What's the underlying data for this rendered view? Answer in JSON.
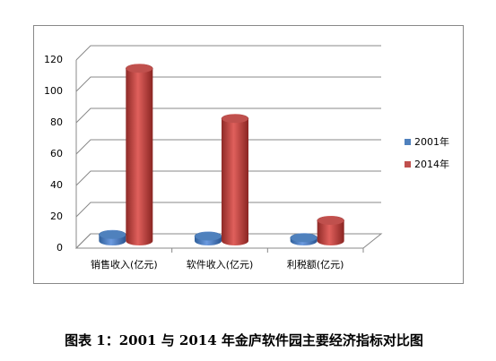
{
  "chart_data": {
    "type": "bar",
    "categories": [
      "销售收入(亿元)",
      "软件收入(亿元)",
      "利税额(亿元)"
    ],
    "series": [
      {
        "name": "2001年",
        "color": "#4f81bd",
        "values": [
          4,
          3,
          2
        ]
      },
      {
        "name": "2014年",
        "color": "#c0504d",
        "values": [
          110,
          78,
          13
        ]
      }
    ],
    "ylim": [
      0,
      120
    ],
    "yticks": [
      0,
      20,
      40,
      60,
      80,
      100,
      120
    ],
    "grid": true,
    "legend": "right",
    "caption": "图表 1：2001 与 2014 年金庐软件园主要经济指标对比图"
  }
}
